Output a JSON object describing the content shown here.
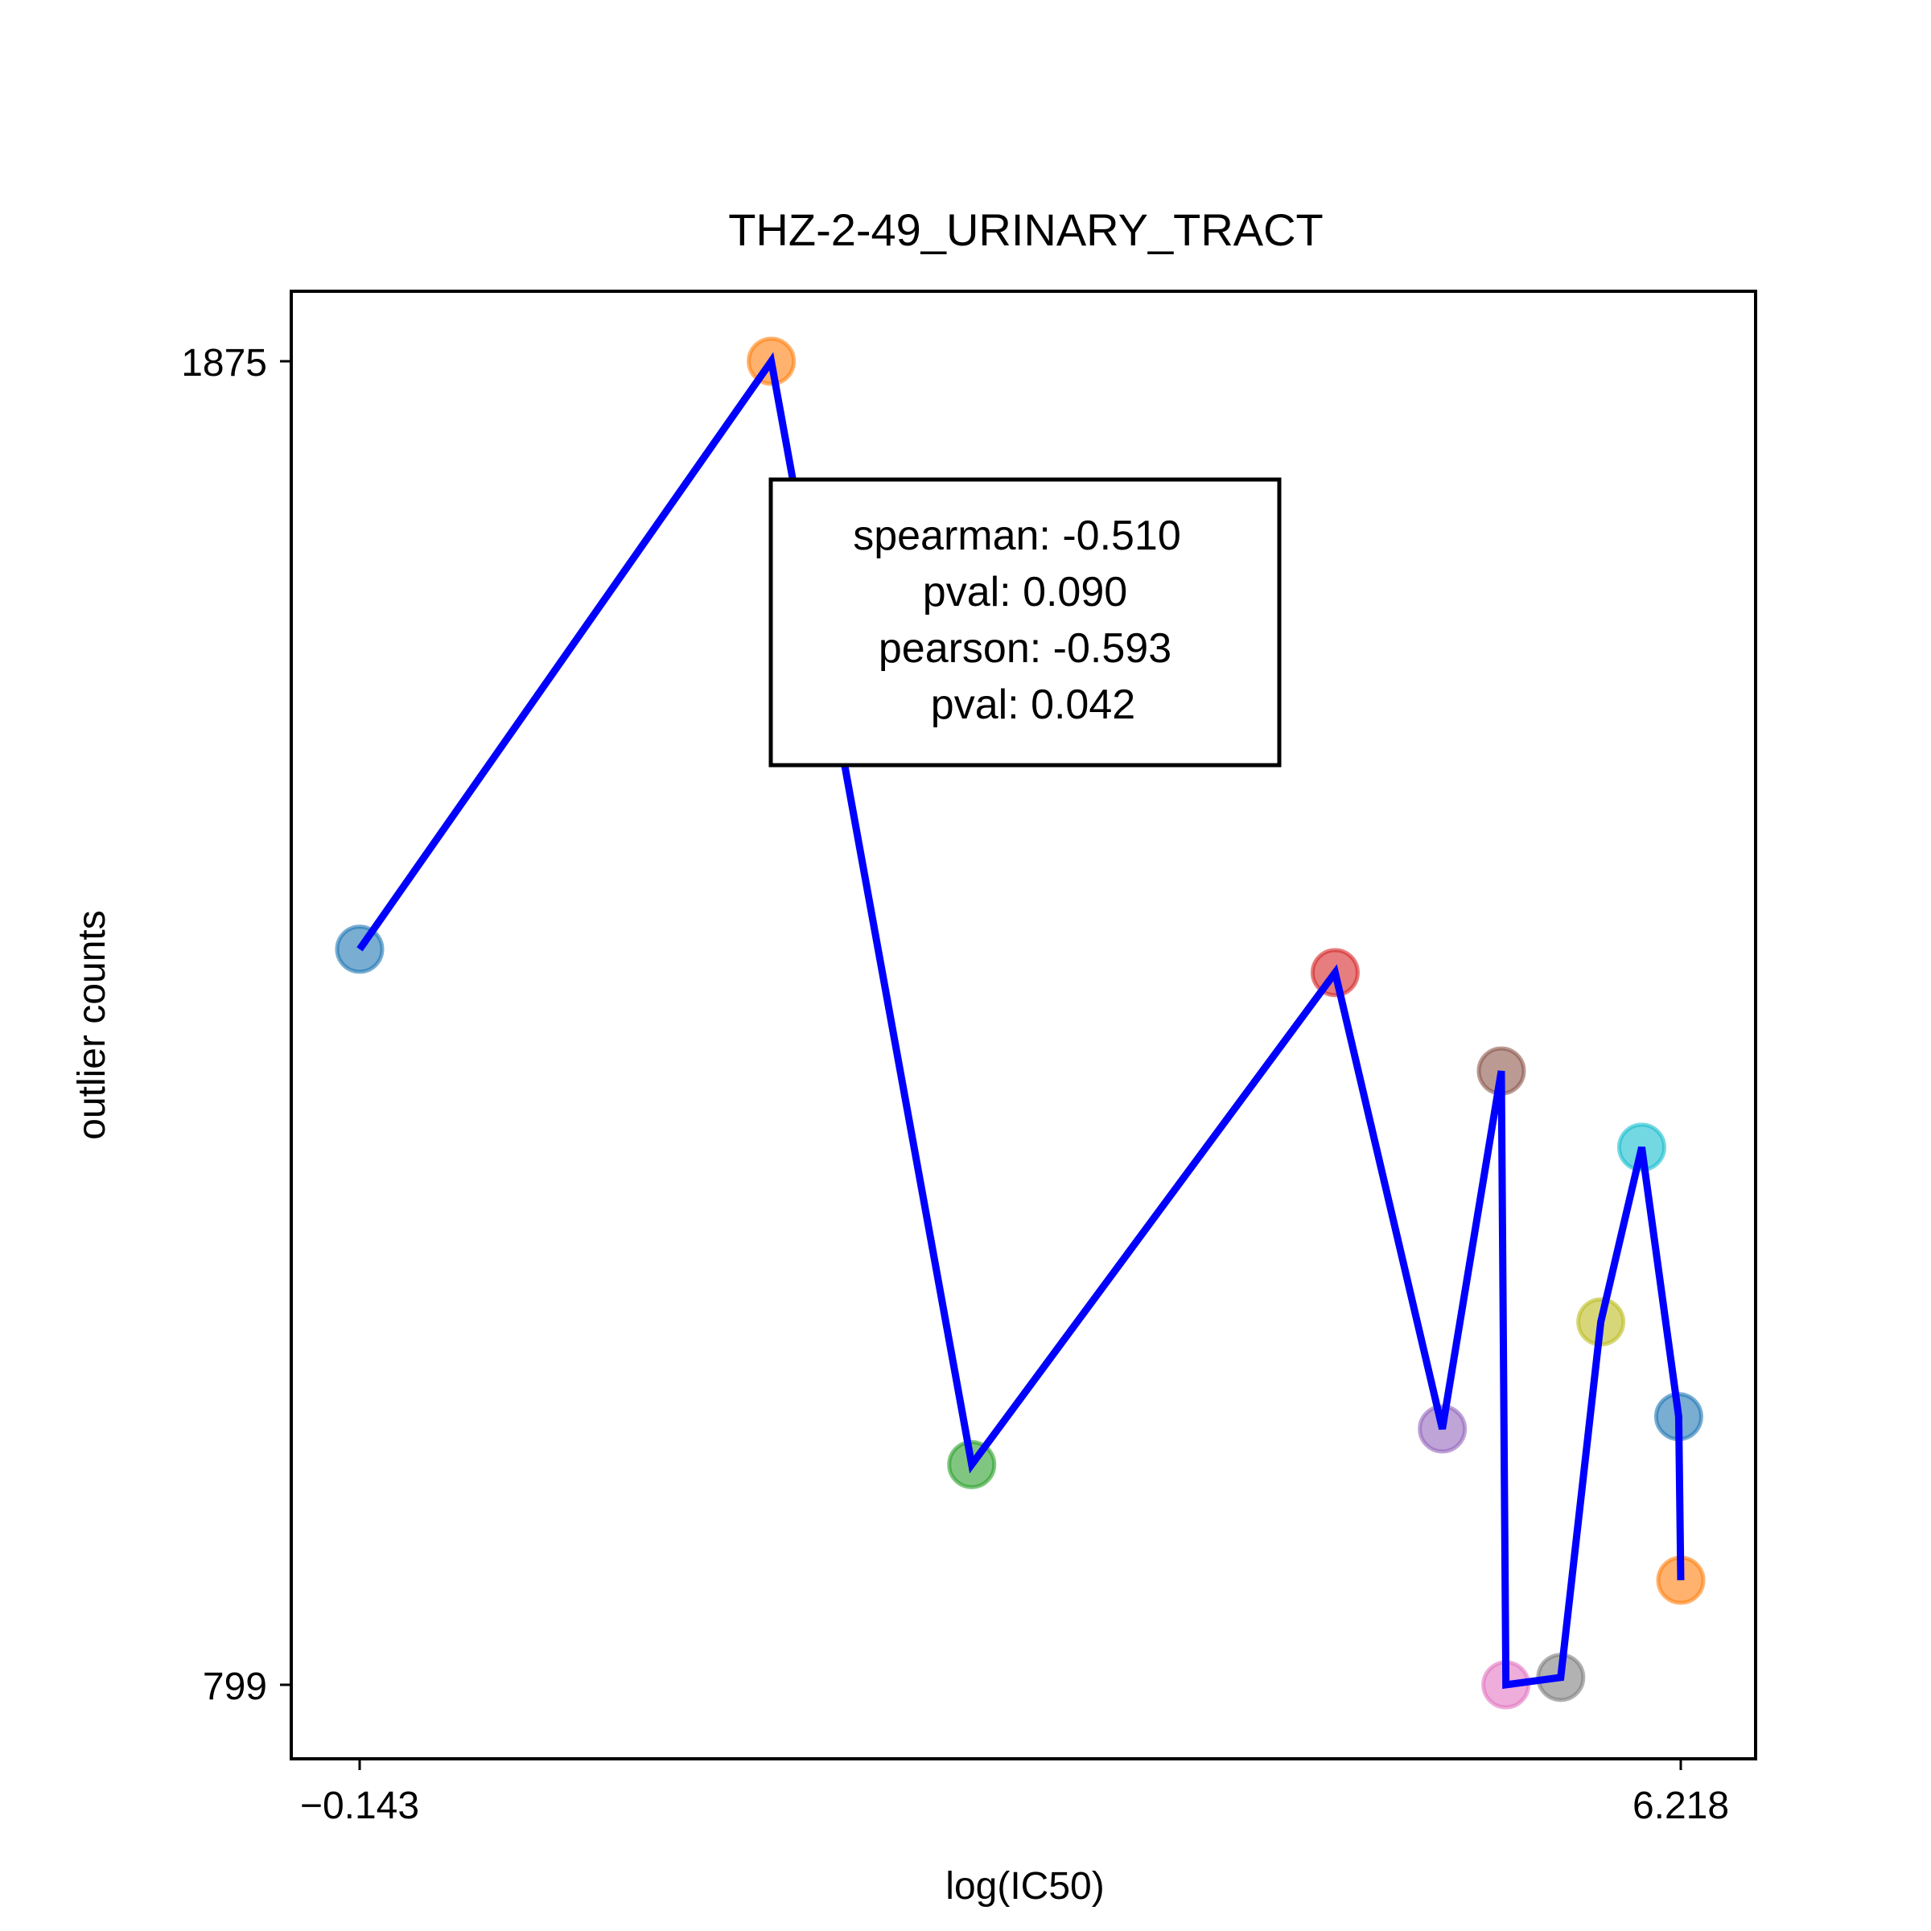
{
  "chart_data": {
    "type": "line",
    "title": "THZ-2-49_URINARY_TRACT",
    "xlabel": "log(IC50)",
    "ylabel": "outlier counts",
    "xlim": [
      -0.143,
      6.218
    ],
    "ylim": [
      799,
      1875
    ],
    "x_ticks": [
      "−0.143",
      "6.218"
    ],
    "y_ticks": [
      "1875",
      "799"
    ],
    "grid": false,
    "points": [
      {
        "x": -0.143,
        "y": 1397,
        "color": "#1f77b4"
      },
      {
        "x": 1.839,
        "y": 1875,
        "color": "#ff7f0e"
      },
      {
        "x": 2.804,
        "y": 978,
        "color": "#2ca02c"
      },
      {
        "x": 4.554,
        "y": 1378,
        "color": "#d62728"
      },
      {
        "x": 5.07,
        "y": 1007,
        "color": "#9467bd"
      },
      {
        "x": 5.354,
        "y": 1298,
        "color": "#8c564b"
      },
      {
        "x": 5.376,
        "y": 799,
        "color": "#e377c2"
      },
      {
        "x": 5.64,
        "y": 805,
        "color": "#7f7f7f"
      },
      {
        "x": 5.833,
        "y": 1094,
        "color": "#bcbd22"
      },
      {
        "x": 6.03,
        "y": 1236,
        "color": "#17becf"
      },
      {
        "x": 6.208,
        "y": 1017,
        "color": "#1f77b4"
      },
      {
        "x": 6.218,
        "y": 884,
        "color": "#ff7f0e"
      }
    ],
    "line_color": "#0000ff",
    "stats": {
      "lines": [
        "spearman: -0.510",
        "pval: 0.090",
        "pearson: -0.593",
        "pval: 0.042"
      ]
    }
  }
}
